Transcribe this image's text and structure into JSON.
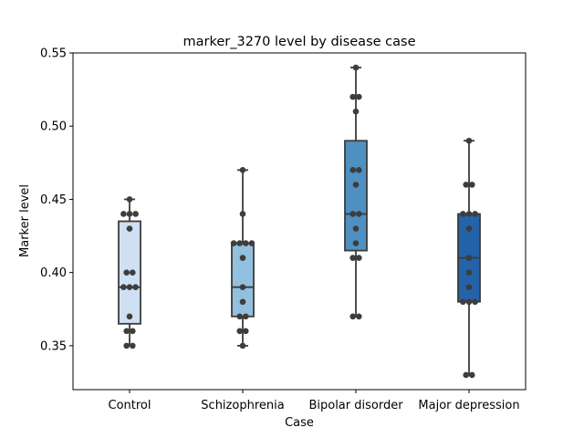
{
  "chart_data": {
    "type": "box",
    "title": "marker_3270 level by disease case",
    "xlabel": "Case",
    "ylabel": "Marker level",
    "ylim": [
      0.32,
      0.55
    ],
    "yticks": [
      0.35,
      0.4,
      0.45,
      0.5,
      0.55
    ],
    "ytick_labels": [
      "0.35",
      "0.40",
      "0.45",
      "0.50",
      "0.55"
    ],
    "grid": false,
    "categories": [
      "Control",
      "Schizophrenia",
      "Bipolar disorder",
      "Major depression"
    ],
    "colors": [
      "#cfe0f2",
      "#93c0de",
      "#4f90c2",
      "#2463a8"
    ],
    "boxes": [
      {
        "name": "Control",
        "whislo": 0.35,
        "q1": 0.365,
        "med": 0.39,
        "q3": 0.435,
        "whishi": 0.45
      },
      {
        "name": "Schizophrenia",
        "whislo": 0.35,
        "q1": 0.37,
        "med": 0.39,
        "q3": 0.42,
        "whishi": 0.47
      },
      {
        "name": "Bipolar disorder",
        "whislo": 0.37,
        "q1": 0.415,
        "med": 0.44,
        "q3": 0.49,
        "whishi": 0.54
      },
      {
        "name": "Major depression",
        "whislo": 0.33,
        "q1": 0.38,
        "med": 0.41,
        "q3": 0.44,
        "whishi": 0.49
      }
    ],
    "points": [
      [
        0.35,
        0.35,
        0.36,
        0.36,
        0.37,
        0.39,
        0.39,
        0.39,
        0.4,
        0.4,
        0.43,
        0.44,
        0.44,
        0.44,
        0.45
      ],
      [
        0.35,
        0.36,
        0.36,
        0.37,
        0.37,
        0.38,
        0.39,
        0.41,
        0.42,
        0.42,
        0.42,
        0.42,
        0.44,
        0.47
      ],
      [
        0.37,
        0.37,
        0.41,
        0.41,
        0.42,
        0.43,
        0.44,
        0.44,
        0.46,
        0.47,
        0.47,
        0.51,
        0.52,
        0.52,
        0.54
      ],
      [
        0.33,
        0.33,
        0.38,
        0.38,
        0.38,
        0.39,
        0.4,
        0.41,
        0.43,
        0.44,
        0.44,
        0.44,
        0.46,
        0.46,
        0.49
      ]
    ]
  }
}
